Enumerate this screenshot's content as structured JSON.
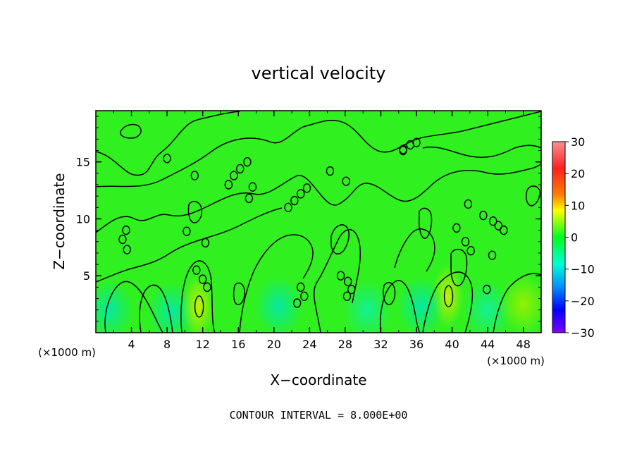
{
  "chart_data": {
    "type": "heatmap",
    "title": "vertical velocity",
    "xlabel": "X−coordinate",
    "ylabel": "Z−coordinate",
    "x_unit_label": "(×1000 m)",
    "xlim": [
      0,
      50
    ],
    "ylim": [
      0,
      19.5
    ],
    "x_ticks": [
      4,
      8,
      12,
      16,
      20,
      24,
      28,
      32,
      36,
      40,
      44,
      48
    ],
    "y_ticks": [
      5,
      10,
      15
    ],
    "colorbar": {
      "range": [
        -30,
        30
      ],
      "ticks": [
        30,
        20,
        10,
        0,
        -10,
        -20,
        -30
      ],
      "tick_labels": [
        "30",
        "20",
        "10",
        "0",
        "−10",
        "−20",
        "−30"
      ],
      "colors": [
        "#ff8080",
        "#ff0000",
        "#ff8000",
        "#ffff00",
        "#00ff00",
        "#00ffd0",
        "#0080ff",
        "#0000ff",
        "#8000ff"
      ]
    },
    "background_value": 0,
    "field_features": [
      {
        "x": 1.5,
        "z": 2.0,
        "w": -5,
        "label": "cyan-lower-left"
      },
      {
        "x": 8.5,
        "z": 1.8,
        "w": -6,
        "label": "cyan-near-8"
      },
      {
        "x": 11.5,
        "z": 2.3,
        "w": 9,
        "label": "yellow-cell-12"
      },
      {
        "x": 39.5,
        "z": 3.2,
        "w": 9,
        "label": "yellow-cell-40"
      },
      {
        "x": 20.5,
        "z": 2.3,
        "w": -5,
        "label": "cyan-near-20"
      },
      {
        "x": 30.5,
        "z": 2.0,
        "w": -4,
        "label": "cyan-near-30"
      },
      {
        "x": 36.5,
        "z": 2.3,
        "w": -5,
        "label": "cyan-near-36"
      },
      {
        "x": 44.0,
        "z": 2.0,
        "w": -4,
        "label": "cyan-near-44"
      },
      {
        "x": 48.0,
        "z": 2.5,
        "w": 4,
        "label": "yellowgreen-right"
      }
    ],
    "contour_interval": 8.0,
    "annotation": "CONTOUR INTERVAL = 8.000E+00"
  },
  "texts": {
    "title": "vertical velocity",
    "xlabel": "X−coordinate",
    "ylabel": "Z−coordinate",
    "unit_left": "(×1000 m)",
    "unit_right": "(×1000 m)",
    "footer": "CONTOUR INTERVAL = 8.000E+00"
  }
}
